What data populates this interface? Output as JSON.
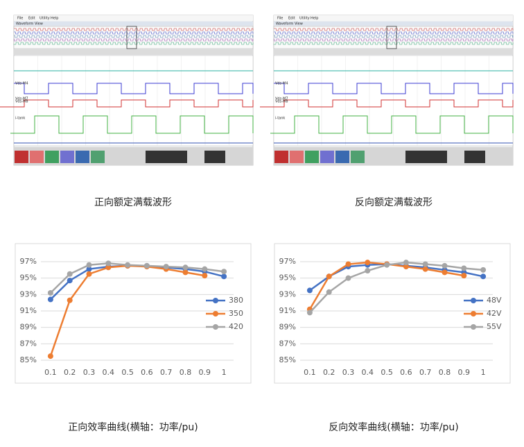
{
  "chart_data": [
    {
      "type": "line",
      "categories": [
        "0.1",
        "0.2",
        "0.3",
        "0.4",
        "0.5",
        "0.6",
        "0.7",
        "0.8",
        "0.9",
        "1"
      ],
      "series": [
        {
          "name": "380",
          "color": "#4472c4",
          "values": [
            92.4,
            94.7,
            96.1,
            96.4,
            96.5,
            96.5,
            96.3,
            96.1,
            95.8,
            95.2
          ]
        },
        {
          "name": "350",
          "color": "#ed7d31",
          "values": [
            85.5,
            92.3,
            95.5,
            96.3,
            96.5,
            96.4,
            96.1,
            95.7,
            95.3,
            null
          ]
        },
        {
          "name": "420",
          "color": "#a5a5a5",
          "values": [
            93.2,
            95.5,
            96.6,
            96.8,
            96.6,
            96.5,
            96.4,
            96.3,
            96.1,
            95.8
          ]
        }
      ],
      "ylim": [
        85,
        97
      ],
      "yticks": [
        {
          "value": 85,
          "label": "85%"
        },
        {
          "value": 87,
          "label": "87%"
        },
        {
          "value": 89,
          "label": "89%"
        },
        {
          "value": 91,
          "label": "91%"
        },
        {
          "value": 93,
          "label": "93%"
        },
        {
          "value": 95,
          "label": "95%"
        },
        {
          "value": 97,
          "label": "97%"
        }
      ],
      "grid": true,
      "legend": "right"
    },
    {
      "type": "line",
      "categories": [
        "0.1",
        "0.2",
        "0.3",
        "0.4",
        "0.5",
        "0.6",
        "0.7",
        "0.8",
        "0.9",
        "1"
      ],
      "series": [
        {
          "name": "48V",
          "color": "#4472c4",
          "values": [
            93.5,
            95.2,
            96.4,
            96.6,
            96.7,
            96.5,
            96.3,
            96.0,
            95.7,
            95.2
          ]
        },
        {
          "name": "42V",
          "color": "#ed7d31",
          "values": [
            91.2,
            95.2,
            96.7,
            96.9,
            96.7,
            96.4,
            96.1,
            95.7,
            95.3,
            null
          ]
        },
        {
          "name": "55V",
          "color": "#a5a5a5",
          "values": [
            90.8,
            93.3,
            95.0,
            95.9,
            96.6,
            96.9,
            96.7,
            96.5,
            96.2,
            96.0
          ]
        }
      ],
      "ylim": [
        85,
        97
      ],
      "yticks": [
        {
          "value": 85,
          "label": "85%"
        },
        {
          "value": 87,
          "label": "87%"
        },
        {
          "value": 89,
          "label": "89%"
        },
        {
          "value": 91,
          "label": "91%"
        },
        {
          "value": 93,
          "label": "93%"
        },
        {
          "value": 95,
          "label": "95%"
        },
        {
          "value": 97,
          "label": "97%"
        }
      ],
      "grid": true,
      "legend": "right"
    }
  ],
  "screenshots": [
    {
      "menu": [
        "File",
        "Edit",
        "Utility",
        "Help"
      ],
      "title": "Waveform View",
      "trace_labels": [
        "Vds-M4",
        "Vds-M7",
        "Vds-M8",
        "i-tank"
      ]
    },
    {
      "menu": [
        "File",
        "Edit",
        "Utility",
        "Help"
      ],
      "title": "Waveform View",
      "trace_labels": [
        "Vds-M4",
        "Vds-M7",
        "Vds-M8",
        "i-tank"
      ]
    }
  ],
  "captions": [
    "正向额定满载波形",
    "反向额定满载波形",
    "正向效率曲线(横轴：功率/pu)",
    "反向效率曲线(横轴：功率/pu)"
  ]
}
